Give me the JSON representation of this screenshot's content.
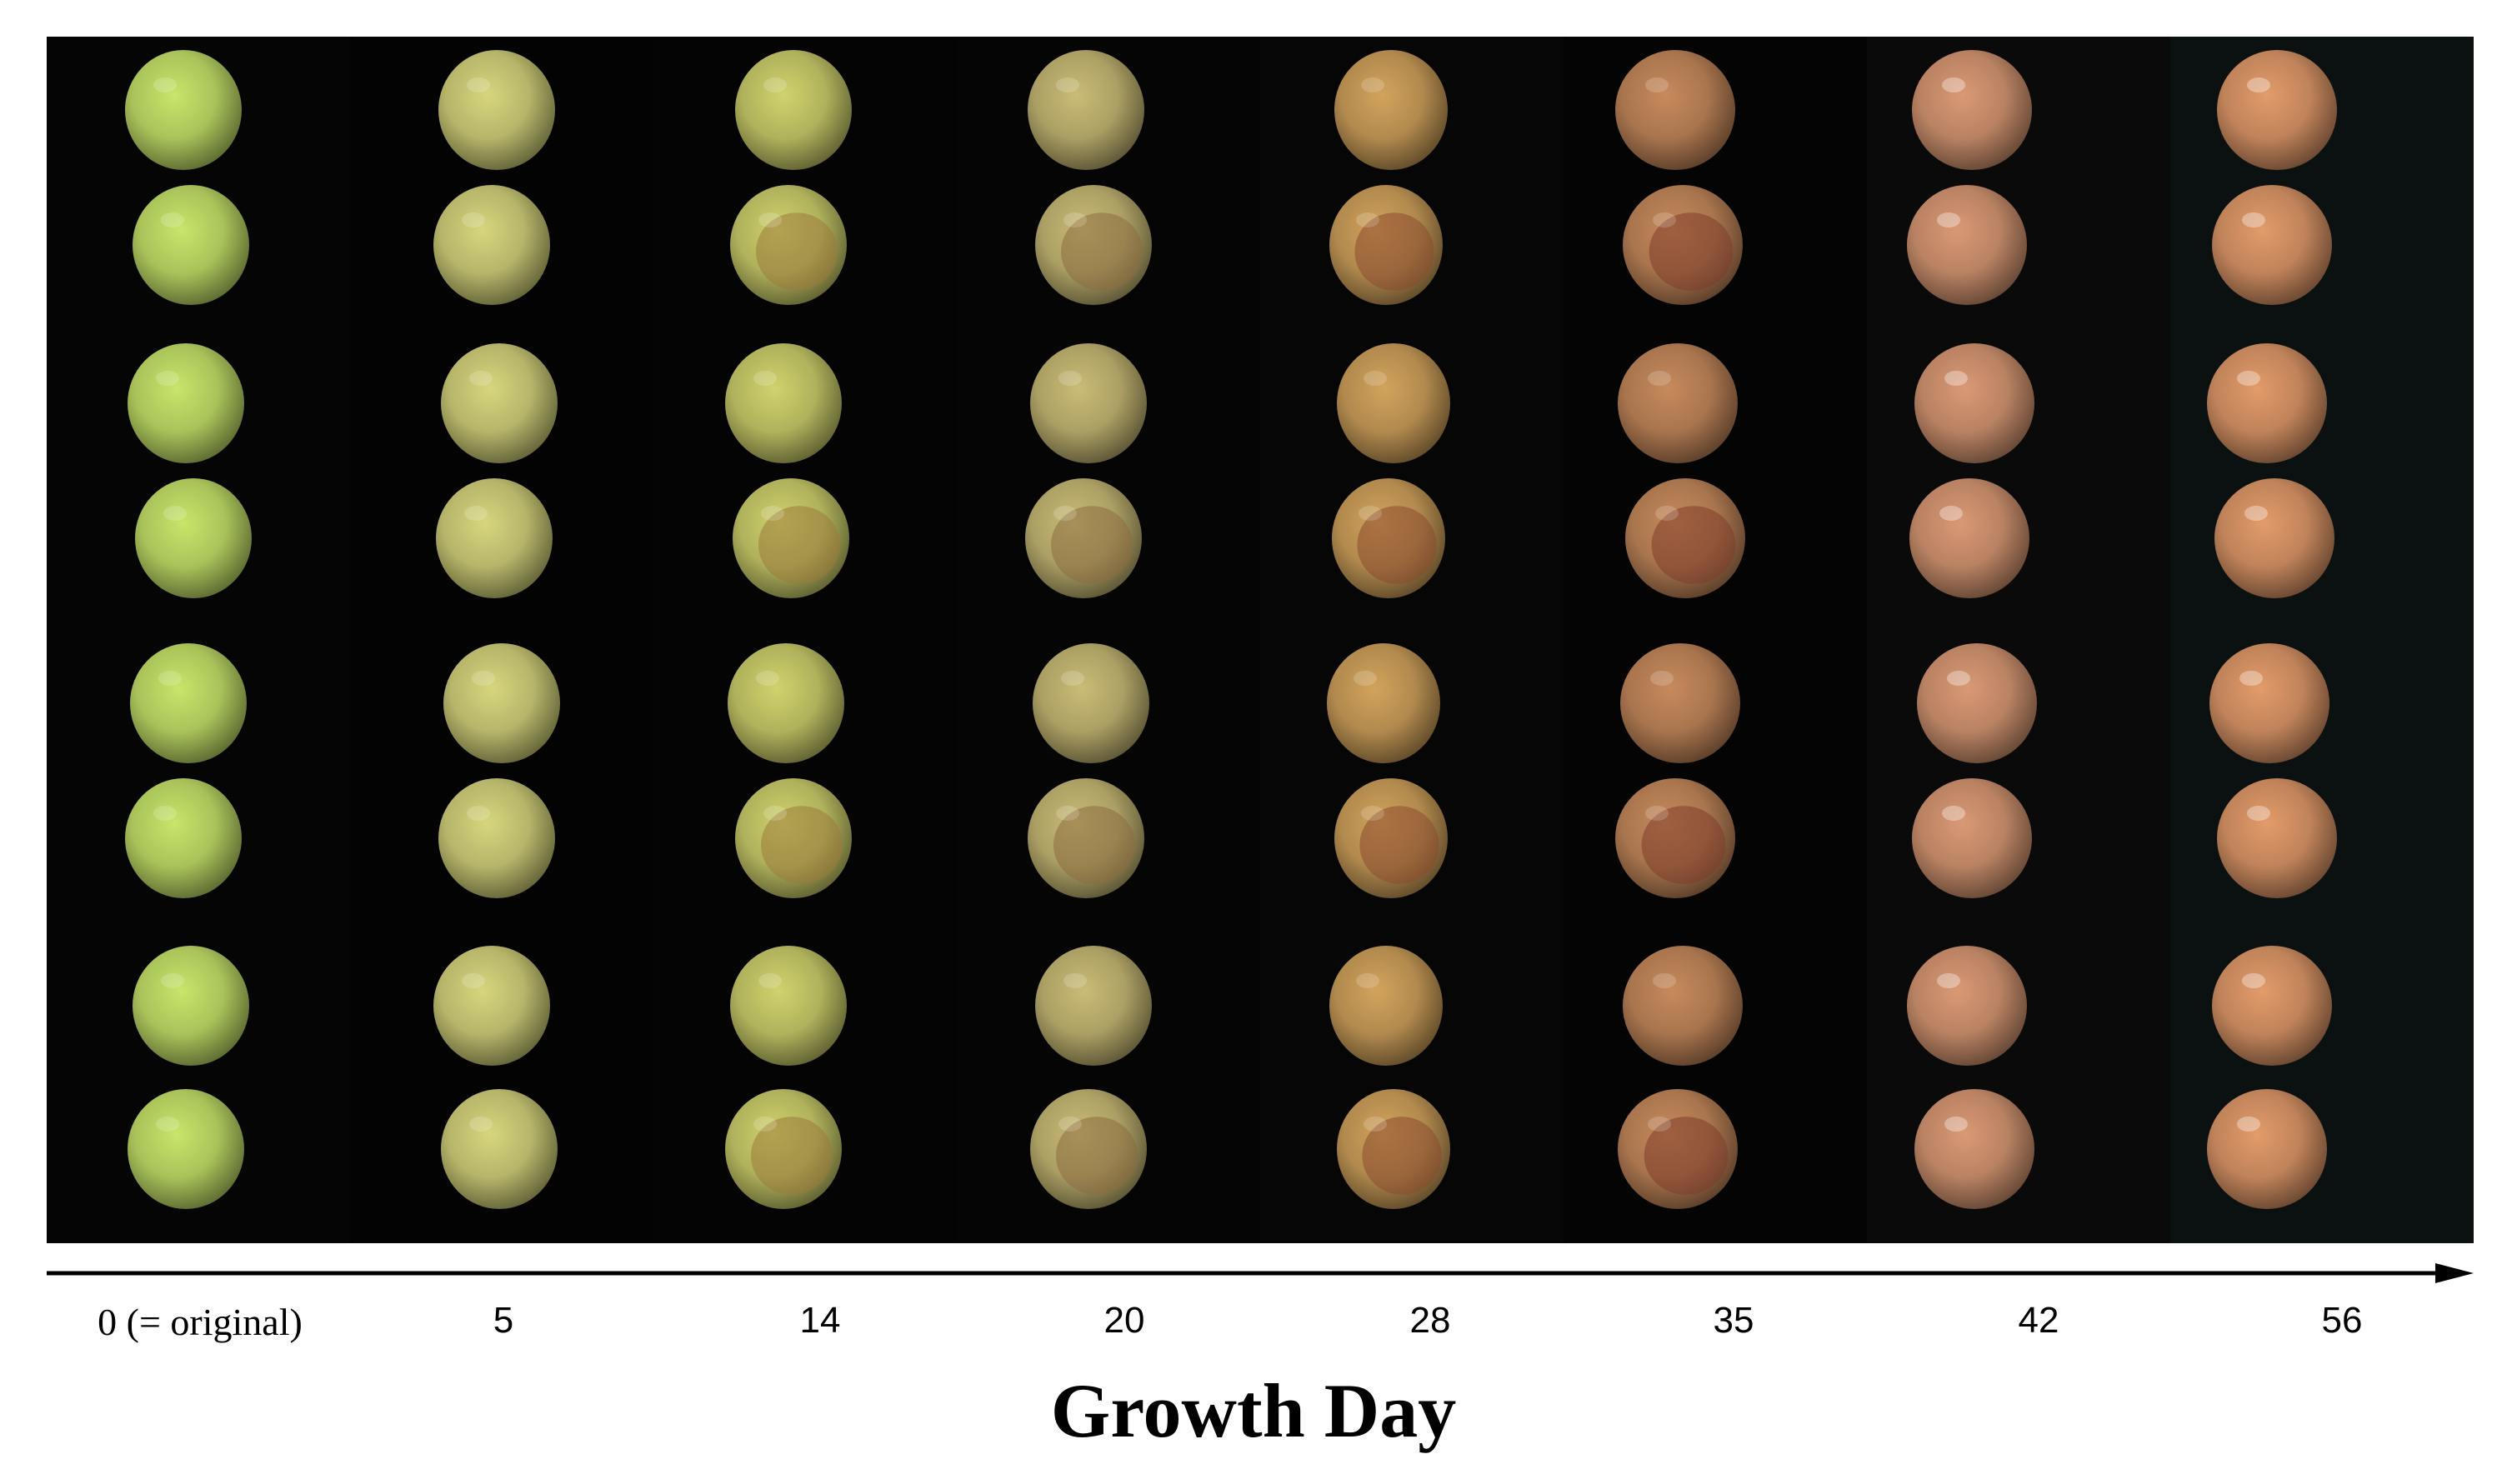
{
  "figure": {
    "axis": {
      "title": "Growth Day",
      "ticks": [
        "0 (= original)",
        "5",
        "14",
        "20",
        "28",
        "35",
        "42",
        "56"
      ]
    },
    "panel": {
      "columns": 8,
      "rows": 8,
      "content": "jujube fruit photographs on black background, color changing from green to reddish-brown across growth days"
    },
    "colors": {
      "background": "#040404",
      "stage_fruit_colors": [
        "#a9c35a",
        "#b6b56a",
        "#b0b25c",
        "#ab9f64",
        "#b28a4e",
        "#a9754e",
        "#b98263",
        "#c0835a"
      ]
    }
  }
}
